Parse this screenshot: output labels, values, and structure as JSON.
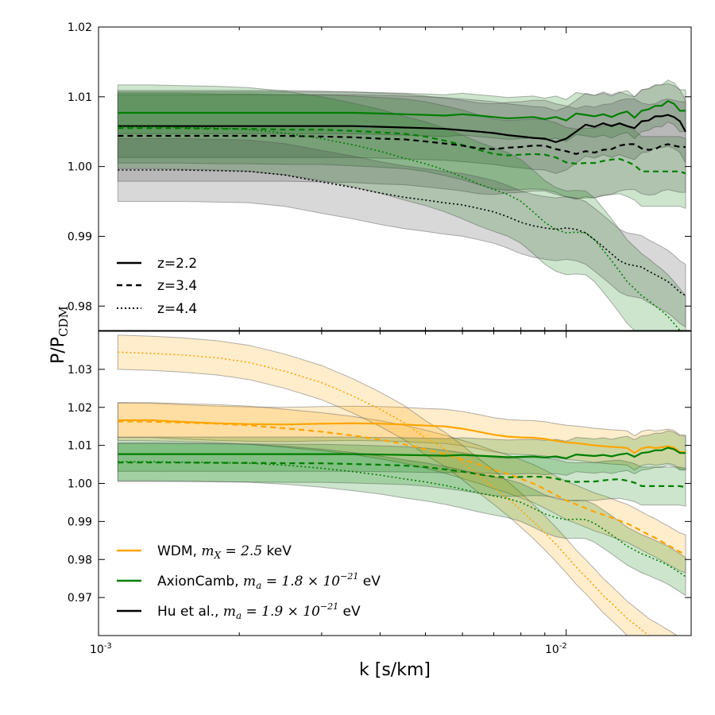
{
  "chart_data": [
    {
      "type": "line",
      "panel": "top",
      "xscale": "log",
      "xlim": [
        0.001,
        0.0185
      ],
      "ylim": [
        0.9765,
        1.02
      ],
      "yticks": [
        0.98,
        0.99,
        1.0,
        1.01,
        1.02
      ],
      "ytick_labels": [
        "0.98",
        "0.99",
        "1.00",
        "1.01",
        "1.02"
      ],
      "x": [
        0.0011,
        0.0013,
        0.0015,
        0.0018,
        0.0021,
        0.0025,
        0.003,
        0.0035,
        0.004,
        0.0045,
        0.005,
        0.0055,
        0.006,
        0.0065,
        0.007,
        0.0075,
        0.008,
        0.0085,
        0.009,
        0.0095,
        0.01,
        0.0105,
        0.011,
        0.0115,
        0.012,
        0.0125,
        0.013,
        0.0135,
        0.014,
        0.0145,
        0.015,
        0.0155,
        0.016,
        0.0165,
        0.017,
        0.0175,
        0.018
      ],
      "series": [
        {
          "name": "AxionCamb z=2.2",
          "color": "#007f00",
          "style": "solid",
          "values": [
            1.0077,
            1.0077,
            1.0077,
            1.0077,
            1.0077,
            1.0077,
            1.0077,
            1.0077,
            1.0076,
            1.0075,
            1.0074,
            1.0073,
            1.0075,
            1.0073,
            1.0071,
            1.0069,
            1.007,
            1.0071,
            1.0068,
            1.0071,
            1.0066,
            1.0076,
            1.0074,
            1.0072,
            1.0075,
            1.0071,
            1.0076,
            1.0079,
            1.007,
            1.008,
            1.0082,
            1.0087,
            1.0087,
            1.0094,
            1.009,
            1.008,
            1.008
          ],
          "band": 0.003,
          "band_color": "#007f00"
        },
        {
          "name": "Hu z=2.2",
          "color": "#000000",
          "style": "solid",
          "values": [
            1.0058,
            1.0058,
            1.0058,
            1.0058,
            1.0058,
            1.0058,
            1.0058,
            1.0058,
            1.0057,
            1.0056,
            1.0055,
            1.0054,
            1.0052,
            1.005,
            1.0048,
            1.0045,
            1.0043,
            1.0041,
            1.004,
            1.0035,
            1.004,
            1.005,
            1.006,
            1.0057,
            1.0062,
            1.0058,
            1.0062,
            1.0058,
            1.0055,
            1.0065,
            1.0066,
            1.0072,
            1.0072,
            1.0074,
            1.0071,
            1.0065,
            1.005
          ],
          "band": 0.0045,
          "band_color": "#3a3a3a"
        },
        {
          "name": "AxionCamb z=3.4",
          "color": "#007f00",
          "style": "dashed",
          "values": [
            1.0055,
            1.0055,
            1.0055,
            1.0054,
            1.0054,
            1.0053,
            1.0053,
            1.0051,
            1.0049,
            1.0047,
            1.0043,
            1.0037,
            1.0031,
            1.0024,
            1.0018,
            1.0016,
            1.0017,
            1.0018,
            1.0017,
            1.0013,
            1.0006,
            1.0004,
            1.0005,
            1.0005,
            1.0008,
            1.001,
            1.0011,
            1.0007,
            1.0002,
            0.9993,
            0.9993,
            0.9993,
            0.9993,
            0.9993,
            0.9993,
            0.9993,
            0.999
          ],
          "band": 0.005,
          "band_color": "#007f00"
        },
        {
          "name": "Hu z=3.4",
          "color": "#000000",
          "style": "dashed",
          "values": [
            1.0044,
            1.0044,
            1.0044,
            1.0044,
            1.0044,
            1.0044,
            1.0043,
            1.0042,
            1.004,
            1.0039,
            1.0036,
            1.0033,
            1.003,
            1.0026,
            1.0025,
            1.0027,
            1.0028,
            1.003,
            1.003,
            1.0025,
            1.0022,
            1.0018,
            1.0022,
            1.002,
            1.0024,
            1.0025,
            1.003,
            1.0032,
            1.0032,
            1.0026,
            1.0024,
            1.0025,
            1.003,
            1.0032,
            1.003,
            1.0028,
            1.0028
          ],
          "band": 0.0065,
          "band_color": "#3a3a3a"
        },
        {
          "name": "AxionCamb z=4.4",
          "color": "#007f00",
          "style": "dotted",
          "values": [
            1.0057,
            1.0057,
            1.0056,
            1.0055,
            1.0053,
            1.0048,
            1.004,
            1.0031,
            1.0022,
            1.0012,
            1.0004,
            0.9995,
            0.9985,
            0.9975,
            0.9967,
            0.996,
            0.995,
            0.9935,
            0.992,
            0.991,
            0.9905,
            0.9906,
            0.9905,
            0.9895,
            0.988,
            0.9865,
            0.985,
            0.9835,
            0.9825,
            0.9815,
            0.9808,
            0.98,
            0.9793,
            0.9785,
            0.9775,
            0.9765,
            0.9755
          ],
          "band": 0.006,
          "band_color": "#007f00"
        },
        {
          "name": "Hu z=4.4",
          "color": "#000000",
          "style": "dotted",
          "values": [
            0.9995,
            0.9995,
            0.9995,
            0.9994,
            0.9993,
            0.9988,
            0.9978,
            0.997,
            0.9962,
            0.9956,
            0.9952,
            0.9948,
            0.9945,
            0.994,
            0.9935,
            0.9928,
            0.992,
            0.9915,
            0.9912,
            0.991,
            0.9912,
            0.991,
            0.9905,
            0.9895,
            0.9885,
            0.9875,
            0.9865,
            0.986,
            0.9858,
            0.9856,
            0.985,
            0.9845,
            0.984,
            0.9835,
            0.9828,
            0.982,
            0.9815
          ],
          "band": 0.0045,
          "band_color": "#3a3a3a"
        }
      ],
      "legend": {
        "placement": "lower-left",
        "entries": [
          {
            "label": "z=2.2",
            "style": "solid"
          },
          {
            "label": "z=3.4",
            "style": "dashed"
          },
          {
            "label": "z=4.4",
            "style": "dotted"
          }
        ]
      }
    },
    {
      "type": "line",
      "panel": "bottom",
      "xscale": "log",
      "xlim": [
        0.001,
        0.0185
      ],
      "ylim": [
        0.96,
        1.04
      ],
      "yticks": [
        0.97,
        0.98,
        0.99,
        1.0,
        1.01,
        1.02,
        1.03
      ],
      "ytick_labels": [
        "0.97",
        "0.98",
        "0.99",
        "1.00",
        "1.01",
        "1.02",
        "1.03"
      ],
      "x": [
        0.0011,
        0.0013,
        0.0015,
        0.0018,
        0.0021,
        0.0025,
        0.003,
        0.0035,
        0.004,
        0.0045,
        0.005,
        0.0055,
        0.006,
        0.0065,
        0.007,
        0.0075,
        0.008,
        0.0085,
        0.009,
        0.0095,
        0.01,
        0.0105,
        0.011,
        0.0115,
        0.012,
        0.0125,
        0.013,
        0.0135,
        0.014,
        0.0145,
        0.015,
        0.0155,
        0.016,
        0.0165,
        0.017,
        0.0175,
        0.018
      ],
      "series": [
        {
          "name": "WDM z=2.2",
          "color": "#ffa500",
          "style": "solid",
          "values": [
            1.0166,
            1.0166,
            1.0162,
            1.0158,
            1.0156,
            1.0155,
            1.0157,
            1.0158,
            1.0157,
            1.0155,
            1.0152,
            1.015,
            1.0144,
            1.0136,
            1.0128,
            1.0123,
            1.0121,
            1.012,
            1.0117,
            1.0112,
            1.0108,
            1.0106,
            1.0103,
            1.01,
            1.0098,
            1.0096,
            1.0095,
            1.0093,
            1.008,
            1.0092,
            1.0096,
            1.0093,
            1.0095,
            1.0098,
            1.0094,
            1.0083,
            1.0082
          ],
          "band": 0.0045,
          "band_color": "#ffa500"
        },
        {
          "name": "WDM z=3.4",
          "color": "#ffa500",
          "style": "dashed",
          "values": [
            1.0163,
            1.0162,
            1.016,
            1.0157,
            1.0153,
            1.0145,
            1.0136,
            1.0126,
            1.0115,
            1.0103,
            1.009,
            1.0077,
            1.0063,
            1.005,
            1.0036,
            1.0025,
            1.0012,
            1.0,
            0.9985,
            0.997,
            0.9955,
            0.9945,
            0.9935,
            0.9925,
            0.9918,
            0.991,
            0.9902,
            0.9895,
            0.9885,
            0.9875,
            0.9865,
            0.9857,
            0.9847,
            0.9838,
            0.9829,
            0.982,
            0.9815
          ],
          "band": 0.005,
          "band_color": "#ffa500"
        },
        {
          "name": "WDM z=4.4",
          "color": "#ffa500",
          "style": "dotted",
          "values": [
            1.0345,
            1.0342,
            1.0338,
            1.033,
            1.0318,
            1.0295,
            1.0265,
            1.023,
            1.0195,
            1.016,
            1.012,
            1.009,
            1.0055,
            1.002,
            0.999,
            0.996,
            0.993,
            0.99,
            0.987,
            0.984,
            0.981,
            0.978,
            0.9755,
            0.973,
            0.9705,
            0.9685,
            0.9665,
            0.9645,
            0.963,
            0.9615,
            0.96,
            0.959,
            0.958,
            0.957,
            0.956,
            0.955,
            0.954
          ],
          "band": 0.0045,
          "band_color": "#ffa500"
        },
        {
          "name": "AxionCamb z=2.2",
          "color": "#007f00",
          "style": "solid",
          "values": [
            1.0077,
            1.0077,
            1.0077,
            1.0077,
            1.0077,
            1.0077,
            1.0077,
            1.0077,
            1.0076,
            1.0075,
            1.0074,
            1.0073,
            1.0075,
            1.0073,
            1.0071,
            1.0069,
            1.007,
            1.0071,
            1.0068,
            1.0071,
            1.0066,
            1.0076,
            1.0074,
            1.0072,
            1.0075,
            1.0071,
            1.0076,
            1.0079,
            1.007,
            1.008,
            1.0082,
            1.0087,
            1.0087,
            1.0094,
            1.009,
            1.008,
            1.008
          ],
          "band": 0.0045,
          "band_color": "#007f00"
        },
        {
          "name": "AxionCamb z=3.4",
          "color": "#007f00",
          "style": "dashed",
          "values": [
            1.0055,
            1.0055,
            1.0055,
            1.0054,
            1.0054,
            1.0053,
            1.0053,
            1.0051,
            1.0049,
            1.0047,
            1.0043,
            1.0037,
            1.0031,
            1.0024,
            1.0018,
            1.0016,
            1.0017,
            1.0018,
            1.0017,
            1.0013,
            1.0006,
            1.0004,
            1.0005,
            1.0005,
            1.0008,
            1.001,
            1.0011,
            1.0007,
            1.0002,
            0.9993,
            0.9993,
            0.9993,
            0.9993,
            0.9993,
            0.9993,
            0.9993,
            0.999
          ],
          "band": 0.005,
          "band_color": "#007f00"
        },
        {
          "name": "AxionCamb z=4.4",
          "color": "#007f00",
          "style": "dotted",
          "values": [
            1.0057,
            1.0057,
            1.0056,
            1.0055,
            1.0053,
            1.0048,
            1.004,
            1.0031,
            1.0022,
            1.0012,
            1.0004,
            0.9995,
            0.9985,
            0.9975,
            0.9967,
            0.996,
            0.995,
            0.9935,
            0.992,
            0.991,
            0.9905,
            0.9906,
            0.9905,
            0.9895,
            0.988,
            0.9865,
            0.985,
            0.9835,
            0.9825,
            0.9815,
            0.9808,
            0.98,
            0.9793,
            0.9785,
            0.9775,
            0.9765,
            0.9755
          ],
          "band": 0.005,
          "band_color": "#007f00"
        }
      ],
      "legend": {
        "placement": "lower-left",
        "entries": [
          {
            "color": "#ffa500",
            "text": "WDM, ",
            "math": "m_X = 2.5",
            "unit": "keV"
          },
          {
            "color": "#007f00",
            "text": "AxionCamb, ",
            "math": "m_a = 1.8 × 10^-21",
            "unit": "eV"
          },
          {
            "color": "#000000",
            "text": "Hu et al., ",
            "math": "m_a = 1.9 × 10^-21",
            "unit": "eV"
          }
        ]
      }
    }
  ],
  "axes": {
    "xlabel": "k [s/km]",
    "ylabel_main": "P/P",
    "ylabel_sub": "CDM",
    "xticks": [
      {
        "value": 0.001,
        "base": "10",
        "exp": "-3"
      },
      {
        "value": 0.01,
        "base": "10",
        "exp": "-2"
      }
    ]
  },
  "legend_math": {
    "wdm": {
      "sym": "m",
      "sub": "X",
      "rest": " = 2.5 ",
      "unit": "keV"
    },
    "axion": {
      "sym": "m",
      "sub": "a",
      "rest": " = 1.8 × 10",
      "exp": "−21",
      "unit": " eV"
    },
    "hu": {
      "sym": "m",
      "sub": "a",
      "rest": " = 1.9 × 10",
      "exp": "−21",
      "unit": " eV"
    }
  }
}
